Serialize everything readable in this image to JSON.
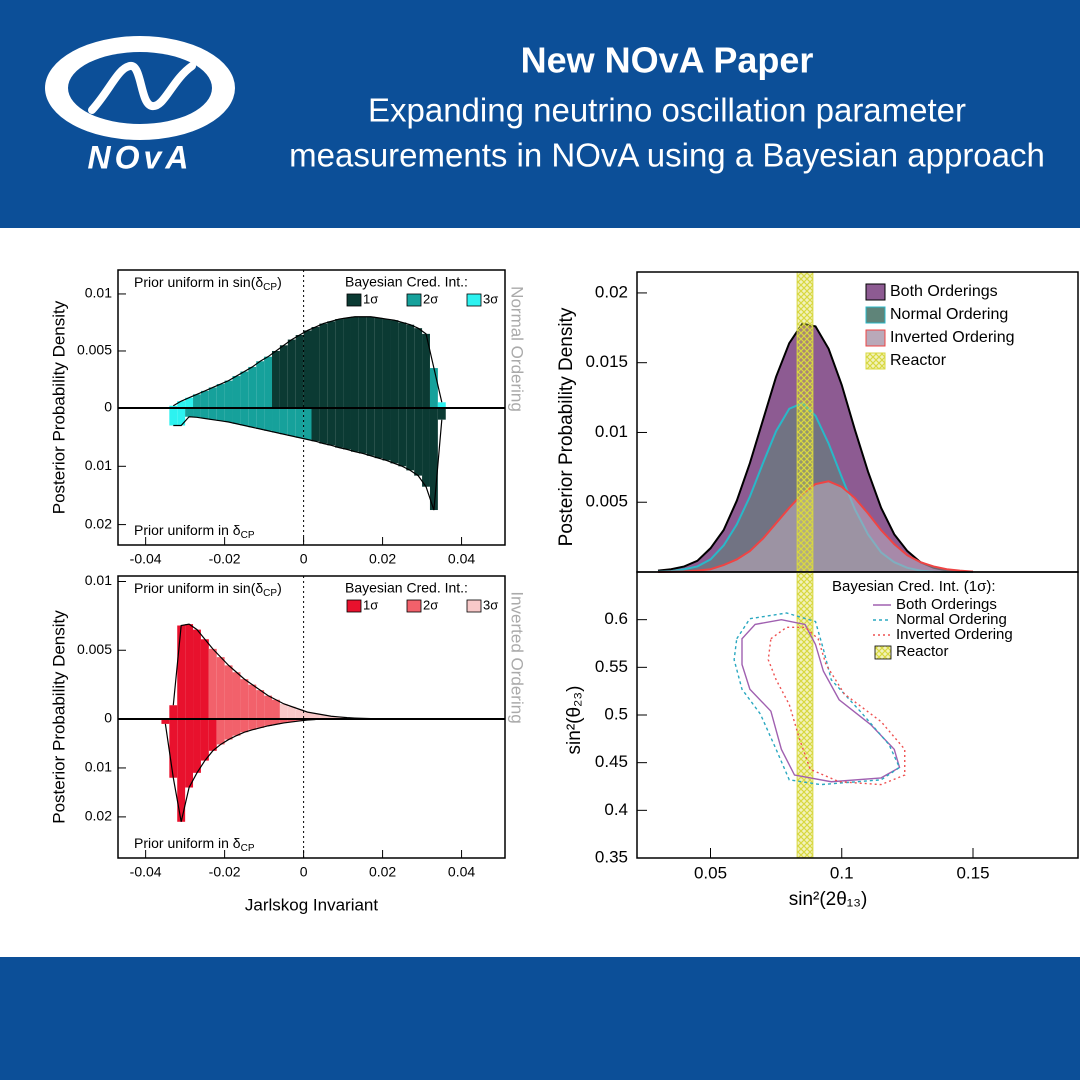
{
  "header": {
    "logo_text": "NOvA",
    "title": "New NOvA Paper",
    "subtitle": [
      "Expanding neutrino oscillation parameter",
      "measurements in NOvA using a Bayesian approach"
    ]
  },
  "chart_data": [
    {
      "type": "mirror_hist",
      "ylabel": "Posterior Probability Density",
      "side_label": "Normal Ordering",
      "legend_title": "Bayesian Cred. Int.:",
      "levels": [
        {
          "name": "1σ",
          "color": "#0b3a33"
        },
        {
          "name": "2σ",
          "color": "#16a19b"
        },
        {
          "name": "3σ",
          "color": "#2df2f0"
        }
      ],
      "xlim": [
        -0.047,
        0.051
      ],
      "xticks": [
        -0.04,
        -0.02,
        0,
        0.02,
        0.04
      ],
      "vline": 0,
      "halves": [
        {
          "annotation": [
            "Prior uniform in sin(δ",
            "CP",
            ")"
          ],
          "ylim": [
            0,
            0.0121
          ],
          "yticks": [
            0,
            0.005,
            0.01
          ],
          "x": [
            -0.034,
            -0.032,
            -0.03,
            -0.028,
            -0.026,
            -0.024,
            -0.022,
            -0.02,
            -0.018,
            -0.016,
            -0.014,
            -0.012,
            -0.01,
            -0.008,
            -0.006,
            -0.004,
            -0.002,
            0,
            0.002,
            0.004,
            0.006,
            0.008,
            0.01,
            0.012,
            0.014,
            0.016,
            0.018,
            0.02,
            0.022,
            0.024,
            0.026,
            0.028,
            0.03,
            0.032,
            0.034
          ],
          "values": [
            0.0002,
            0.0006,
            0.0009,
            0.0012,
            0.0015,
            0.0018,
            0.0021,
            0.0024,
            0.0028,
            0.0032,
            0.0036,
            0.0041,
            0.0045,
            0.005,
            0.0055,
            0.006,
            0.0064,
            0.0068,
            0.0071,
            0.0074,
            0.0076,
            0.0078,
            0.0079,
            0.008,
            0.008,
            0.008,
            0.0079,
            0.0078,
            0.0077,
            0.0075,
            0.0073,
            0.007,
            0.0065,
            0.0035,
            0.0005
          ],
          "level_ranges": [
            [
              [
                -0.008,
                0.032
              ]
            ],
            [
              [
                -0.028,
                -0.008
              ],
              [
                0.032,
                0.034
              ]
            ],
            [
              [
                -0.034,
                -0.028
              ],
              [
                0.034,
                0.036
              ]
            ]
          ]
        },
        {
          "annotation": [
            "Prior uniform in δ",
            "CP"
          ],
          "ylim": [
            0,
            0.0235
          ],
          "yticks": [
            0.01,
            0.02
          ],
          "x": [
            -0.034,
            -0.032,
            -0.03,
            -0.028,
            -0.026,
            -0.024,
            -0.022,
            -0.02,
            -0.018,
            -0.016,
            -0.014,
            -0.012,
            -0.01,
            -0.008,
            -0.006,
            -0.004,
            -0.002,
            0,
            0.002,
            0.004,
            0.006,
            0.008,
            0.01,
            0.012,
            0.014,
            0.016,
            0.018,
            0.02,
            0.022,
            0.024,
            0.026,
            0.028,
            0.03,
            0.032,
            0.034
          ],
          "values": [
            0.003,
            0.003,
            0.0015,
            0.0016,
            0.0018,
            0.002,
            0.0022,
            0.0024,
            0.0027,
            0.003,
            0.0033,
            0.0036,
            0.0039,
            0.0042,
            0.0045,
            0.0048,
            0.0051,
            0.0054,
            0.0057,
            0.0061,
            0.0064,
            0.0068,
            0.0071,
            0.0075,
            0.0078,
            0.0082,
            0.0086,
            0.009,
            0.0095,
            0.01,
            0.0107,
            0.0116,
            0.0135,
            0.0175,
            0.002
          ],
          "level_ranges": [
            [
              [
                0.002,
                0.036
              ]
            ],
            [
              [
                -0.03,
                0.002
              ]
            ],
            [
              [
                -0.034,
                -0.03
              ]
            ]
          ]
        }
      ]
    },
    {
      "type": "mirror_hist",
      "ylabel": "Posterior Probability Density",
      "side_label": "Inverted Ordering",
      "legend_title": "Bayesian Cred. Int.:",
      "xlabel": "Jarlskog Invariant",
      "levels": [
        {
          "name": "1σ",
          "color": "#e8112d"
        },
        {
          "name": "2σ",
          "color": "#f2616b"
        },
        {
          "name": "3σ",
          "color": "#f8c9c9"
        }
      ],
      "xlim": [
        -0.047,
        0.051
      ],
      "xticks": [
        -0.04,
        -0.02,
        0,
        0.02,
        0.04
      ],
      "vline": 0,
      "halves": [
        {
          "annotation": [
            "Prior uniform in sin(δ",
            "CP",
            ")"
          ],
          "ylim": [
            0,
            0.0104
          ],
          "yticks": [
            0,
            0.005,
            0.01
          ],
          "x": [
            -0.034,
            -0.032,
            -0.03,
            -0.028,
            -0.026,
            -0.024,
            -0.022,
            -0.02,
            -0.018,
            -0.016,
            -0.014,
            -0.012,
            -0.01,
            -0.008,
            -0.006,
            -0.004,
            -0.002,
            0,
            0.002,
            0.004,
            0.006,
            0.008,
            0.01,
            0.012,
            0.014,
            0.016,
            0.018,
            0.02
          ],
          "values": [
            0.001,
            0.0068,
            0.0069,
            0.0065,
            0.0058,
            0.0051,
            0.0045,
            0.0039,
            0.0034,
            0.0029,
            0.0025,
            0.0021,
            0.0017,
            0.0014,
            0.0011,
            0.0009,
            0.0007,
            0.0005,
            0.0004,
            0.0003,
            0.0002,
            0.00015,
            0.0001,
            7e-05,
            5e-05,
            3e-05,
            2e-05,
            1e-05
          ],
          "level_ranges": [
            [
              [
                -0.034,
                -0.024
              ]
            ],
            [
              [
                -0.024,
                -0.006
              ]
            ],
            [
              [
                -0.006,
                0.022
              ]
            ]
          ]
        },
        {
          "annotation": [
            "Prior uniform in δ",
            "CP"
          ],
          "ylim": [
            0,
            0.0284
          ],
          "yticks": [
            0.01,
            0.02
          ],
          "x": [
            -0.036,
            -0.034,
            -0.032,
            -0.03,
            -0.028,
            -0.026,
            -0.024,
            -0.022,
            -0.02,
            -0.018,
            -0.016,
            -0.014,
            -0.012,
            -0.01,
            -0.008,
            -0.006,
            -0.004,
            -0.002,
            0,
            0.002
          ],
          "values": [
            0.001,
            0.012,
            0.021,
            0.014,
            0.011,
            0.0085,
            0.0065,
            0.0052,
            0.0042,
            0.0034,
            0.0027,
            0.0022,
            0.0018,
            0.0014,
            0.0011,
            0.0008,
            0.0006,
            0.0004,
            0.0002,
            0.0001
          ],
          "level_ranges": [
            [
              [
                -0.036,
                -0.022
              ]
            ],
            [
              [
                -0.022,
                0.004
              ]
            ],
            []
          ]
        }
      ]
    },
    {
      "type": "density",
      "ylabel": "Posterior Probability Density",
      "xlim": [
        0.022,
        0.19
      ],
      "ylim": [
        0,
        0.0215
      ],
      "yticks": [
        0.005,
        0.01,
        0.015,
        0.02
      ],
      "x": [
        0.03,
        0.035,
        0.04,
        0.045,
        0.05,
        0.055,
        0.06,
        0.065,
        0.07,
        0.075,
        0.08,
        0.085,
        0.09,
        0.095,
        0.1,
        0.105,
        0.11,
        0.115,
        0.12,
        0.125,
        0.13,
        0.135,
        0.14,
        0.145,
        0.15
      ],
      "series": [
        {
          "name": "Both Orderings",
          "color": "#8d5b92",
          "line": "#000000",
          "values": [
            0.0001,
            0.0002,
            0.0004,
            0.0008,
            0.0017,
            0.003,
            0.0051,
            0.0078,
            0.0109,
            0.014,
            0.0164,
            0.0178,
            0.0176,
            0.016,
            0.0134,
            0.0102,
            0.0072,
            0.0046,
            0.0027,
            0.0015,
            0.0007,
            0.0003,
            0.0001,
            5e-05,
            2e-05
          ]
        },
        {
          "name": "Normal Ordering",
          "color": "#5f8479",
          "line": "#29b8c8",
          "values": [
            2e-05,
            6e-05,
            0.0002,
            0.0004,
            0.0009,
            0.0019,
            0.0034,
            0.0054,
            0.0078,
            0.0101,
            0.0117,
            0.0121,
            0.0112,
            0.0092,
            0.0068,
            0.0045,
            0.0027,
            0.0014,
            0.0007,
            0.0003,
            0.0001,
            3e-05,
            1e-05,
            0,
            0
          ]
        },
        {
          "name": "Inverted Ordering",
          "color": "#b9a9b9",
          "line": "#ee4444",
          "values": [
            0,
            2e-05,
            4e-05,
            0.0001,
            0.0002,
            0.0005,
            0.0009,
            0.0015,
            0.0024,
            0.0035,
            0.0046,
            0.0056,
            0.0063,
            0.0065,
            0.0061,
            0.0053,
            0.0042,
            0.003,
            0.002,
            0.0012,
            0.0007,
            0.0004,
            0.0002,
            0.0001,
            3e-05
          ]
        }
      ],
      "band": {
        "name": "Reactor",
        "x": [
          0.083,
          0.089
        ],
        "color": "#d8d840"
      }
    },
    {
      "type": "contour",
      "xlabel": "sin²(2θ₁₃)",
      "ylabel": "sin²(θ₂₃)",
      "legend_title": "Bayesian Cred. Int. (1σ):",
      "xlim": [
        0.022,
        0.19
      ],
      "xticks": [
        0.05,
        0.1,
        0.15
      ],
      "ylim": [
        0.35,
        0.65
      ],
      "yticks": [
        0.35,
        0.4,
        0.45,
        0.5,
        0.55,
        0.6
      ],
      "series": [
        {
          "name": "Both Orderings",
          "color": "#a060b0",
          "dash": "none",
          "x": [
            0.062,
            0.067,
            0.077,
            0.086,
            0.09,
            0.093,
            0.099,
            0.111,
            0.12,
            0.122,
            0.115,
            0.096,
            0.082,
            0.077,
            0.073,
            0.065,
            0.062
          ],
          "y": [
            0.58,
            0.595,
            0.6,
            0.595,
            0.574,
            0.546,
            0.516,
            0.49,
            0.464,
            0.445,
            0.434,
            0.43,
            0.437,
            0.464,
            0.504,
            0.527,
            0.553
          ]
        },
        {
          "name": "Normal Ordering",
          "color": "#2aa8c0",
          "dash": "3 3",
          "x": [
            0.06,
            0.065,
            0.079,
            0.09,
            0.093,
            0.096,
            0.107,
            0.118,
            0.122,
            0.115,
            0.092,
            0.08,
            0.075,
            0.069,
            0.062,
            0.059
          ],
          "y": [
            0.58,
            0.601,
            0.607,
            0.598,
            0.569,
            0.537,
            0.504,
            0.469,
            0.445,
            0.432,
            0.427,
            0.432,
            0.464,
            0.501,
            0.527,
            0.558
          ]
        },
        {
          "name": "Inverted Ordering",
          "color": "#ee5050",
          "dash": "2 3",
          "x": [
            0.073,
            0.079,
            0.086,
            0.091,
            0.094,
            0.101,
            0.115,
            0.124,
            0.124,
            0.115,
            0.099,
            0.088,
            0.084,
            0.08,
            0.075,
            0.072
          ],
          "y": [
            0.58,
            0.592,
            0.592,
            0.58,
            0.553,
            0.522,
            0.493,
            0.464,
            0.437,
            0.427,
            0.43,
            0.443,
            0.474,
            0.511,
            0.537,
            0.558
          ]
        }
      ],
      "band": {
        "name": "Reactor",
        "x": [
          0.083,
          0.089
        ],
        "color": "#d8d840"
      }
    }
  ]
}
